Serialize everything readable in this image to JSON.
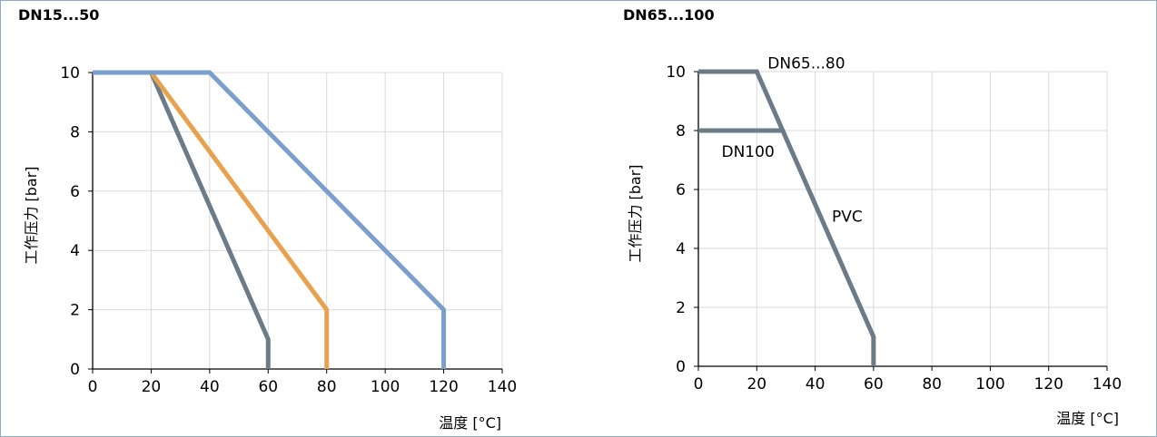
{
  "charts": {
    "left_title": "DN15...50",
    "right_title": "DN65...100"
  },
  "chart_data": [
    {
      "type": "line",
      "title": "DN15...50",
      "xlabel": "温度 [°C]",
      "ylabel": "工作压力 [bar]",
      "xlim": [
        0,
        140
      ],
      "ylim": [
        0,
        10
      ],
      "xticks": [
        0,
        20,
        40,
        60,
        80,
        100,
        120,
        140
      ],
      "yticks": [
        0,
        2,
        4,
        6,
        8,
        10
      ],
      "grid": true,
      "series": [
        {
          "color": "#6b7b88",
          "x": [
            0,
            20,
            60,
            60
          ],
          "y": [
            10,
            10,
            1,
            0
          ]
        },
        {
          "color": "#e8a24f",
          "x": [
            0,
            20,
            80,
            80
          ],
          "y": [
            10,
            10,
            2,
            0
          ]
        },
        {
          "color": "#7a9fcc",
          "x": [
            0,
            40,
            120,
            120
          ],
          "y": [
            10,
            10,
            2,
            0
          ]
        }
      ],
      "annotations": []
    },
    {
      "type": "line",
      "title": "DN65...100",
      "xlabel": "温度 [°C]",
      "ylabel": "工作压力 [bar]",
      "xlim": [
        0,
        140
      ],
      "ylim": [
        0,
        10
      ],
      "xticks": [
        0,
        20,
        40,
        60,
        80,
        100,
        120,
        140
      ],
      "yticks": [
        0,
        2,
        4,
        6,
        8,
        10
      ],
      "grid": true,
      "series": [
        {
          "color": "#6b7b88",
          "x": [
            0,
            20,
            60,
            60
          ],
          "y": [
            10,
            10,
            1,
            0
          ]
        },
        {
          "color": "#6b7b88",
          "x": [
            0,
            29
          ],
          "y": [
            8,
            8
          ]
        }
      ],
      "annotations": [
        {
          "text": "DN65...80",
          "x": 37,
          "y": 10.3
        },
        {
          "text": "DN100",
          "x": 17,
          "y": 7.3
        },
        {
          "text": "PVC",
          "x": 51,
          "y": 5.1
        }
      ]
    }
  ]
}
